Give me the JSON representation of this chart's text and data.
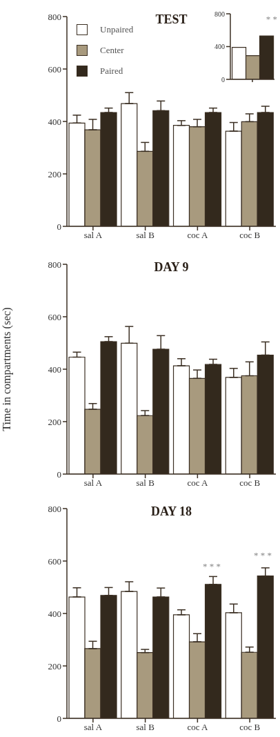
{
  "chart_data": [
    {
      "type": "bar",
      "title": "TEST",
      "categories": [
        "sal A",
        "sal B",
        "coc A",
        "coc B"
      ],
      "ylim": [
        0,
        800
      ],
      "yticks": [
        0,
        200,
        400,
        600,
        800
      ],
      "legend": "top left",
      "grid": false,
      "series": [
        {
          "name": "Unpaired",
          "color": "#ffffff",
          "values": [
            394,
            468,
            385,
            363
          ],
          "errors": [
            [
              394,
              424
            ],
            [
              468,
              510
            ],
            [
              385,
              403
            ],
            [
              363,
              396
            ]
          ]
        },
        {
          "name": "Center",
          "color": "#a89a7e",
          "values": [
            368,
            286,
            380,
            399
          ],
          "errors": [
            [
              368,
              408
            ],
            [
              286,
              320
            ],
            [
              380,
              408
            ],
            [
              399,
              429
            ]
          ]
        },
        {
          "name": "Paired",
          "color": "#33291d",
          "values": [
            434,
            441,
            434,
            434
          ],
          "errors": [
            [
              434,
              451
            ],
            [
              441,
              478
            ],
            [
              434,
              451
            ],
            [
              434,
              458
            ]
          ]
        }
      ]
    },
    {
      "type": "bar",
      "categories": [
        null
      ],
      "ylim": [
        0,
        800
      ],
      "yticks": [
        0,
        400,
        800
      ],
      "grid": false,
      "annotations": [
        "* *"
      ],
      "series": [
        {
          "color": "#ffffff",
          "values": [
            390
          ]
        },
        {
          "color": "#a89a7e",
          "values": [
            290
          ]
        },
        {
          "color": "#33291d",
          "values": [
            530
          ]
        }
      ]
    },
    {
      "type": "bar",
      "title": "DAY 9",
      "ylabel": "Time in compartments (sec)",
      "categories": [
        "sal A",
        "sal B",
        "coc A",
        "coc B"
      ],
      "ylim": [
        0,
        800
      ],
      "yticks": [
        0,
        200,
        400,
        600,
        800
      ],
      "grid": false,
      "series": [
        {
          "color": "#ffffff",
          "values": [
            446,
            499,
            413,
            369
          ],
          "errors": [
            [
              446,
              465
            ],
            [
              499,
              563
            ],
            [
              413,
              440
            ],
            [
              369,
              403
            ]
          ]
        },
        {
          "color": "#a89a7e",
          "values": [
            247,
            223,
            365,
            375
          ],
          "errors": [
            [
              247,
              269
            ],
            [
              223,
              242
            ],
            [
              365,
              397
            ],
            [
              375,
              428
            ]
          ]
        },
        {
          "color": "#33291d",
          "values": [
            505,
            476,
            418,
            454
          ],
          "errors": [
            [
              505,
              524
            ],
            [
              476,
              528
            ],
            [
              418,
              438
            ],
            [
              454,
              504
            ]
          ]
        }
      ]
    },
    {
      "type": "bar",
      "title": "DAY 18",
      "categories": [
        "sal A",
        "sal B",
        "coc A",
        "coc B"
      ],
      "ylim": [
        0,
        800
      ],
      "yticks": [
        0,
        200,
        400,
        600,
        800
      ],
      "grid": false,
      "annotations": [
        "* * *",
        "* * *"
      ],
      "series": [
        {
          "color": "#ffffff",
          "values": [
            463,
            484,
            395,
            403
          ],
          "errors": [
            [
              463,
              498
            ],
            [
              484,
              521
            ],
            [
              395,
              414
            ],
            [
              403,
              436
            ]
          ]
        },
        {
          "color": "#a89a7e",
          "values": [
            266,
            251,
            292,
            252
          ],
          "errors": [
            [
              266,
              294
            ],
            [
              251,
              263
            ],
            [
              292,
              323
            ],
            [
              252,
              272
            ]
          ]
        },
        {
          "color": "#33291d",
          "values": [
            469,
            463,
            511,
            543
          ],
          "errors": [
            [
              469,
              499
            ],
            [
              463,
              497
            ],
            [
              511,
              541
            ],
            [
              543,
              574
            ]
          ]
        }
      ]
    }
  ]
}
